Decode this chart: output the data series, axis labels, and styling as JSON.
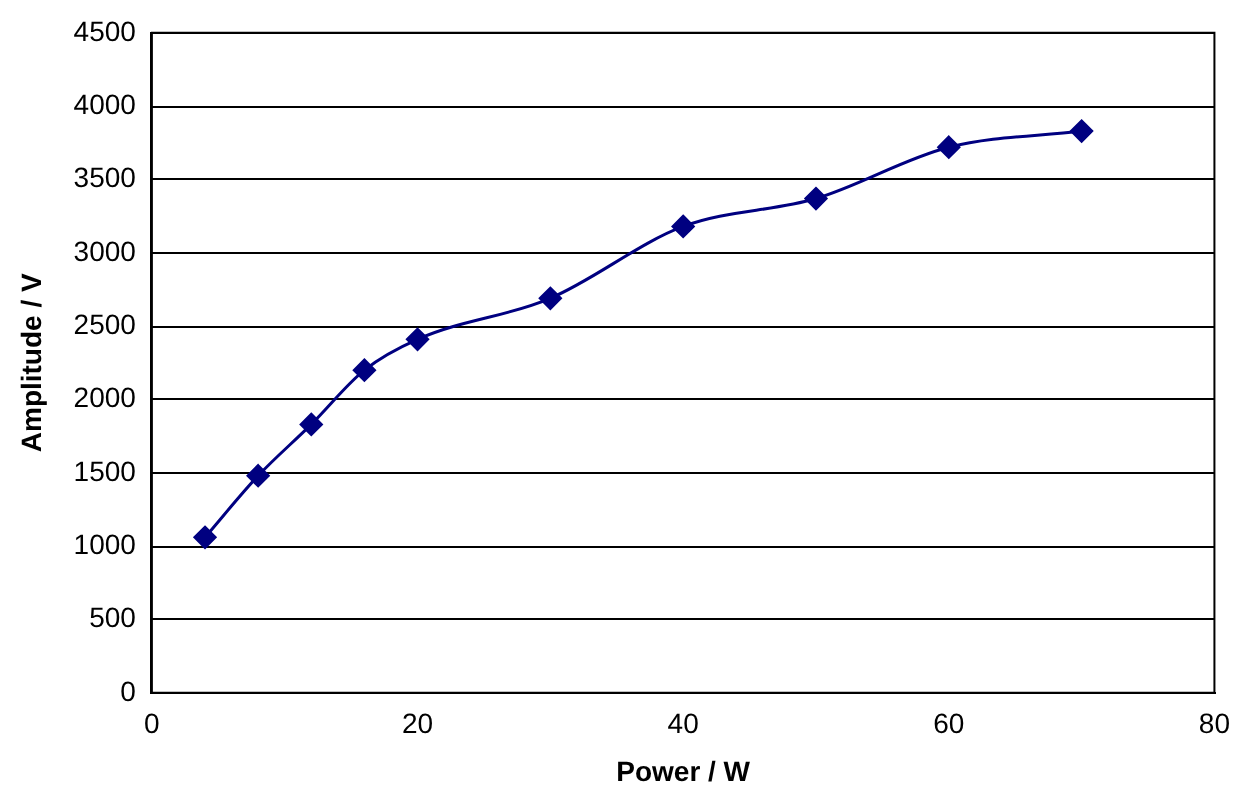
{
  "chart_data": {
    "type": "line",
    "xlabel": "Power / W",
    "ylabel": "Amplitude / V",
    "x": [
      4,
      8,
      12,
      16,
      20,
      30,
      40,
      50,
      60,
      70
    ],
    "series": [
      {
        "color": "#000080",
        "values": [
          1060,
          1480,
          1830,
          2200,
          2410,
          2690,
          3180,
          3370,
          3720,
          3830
        ]
      }
    ],
    "xlim": [
      0,
      80
    ],
    "xticks": [
      0,
      20,
      40,
      60,
      80
    ],
    "ylim": [
      0,
      4500
    ],
    "yticks": [
      0,
      500,
      1000,
      1500,
      2000,
      2500,
      3000,
      3500,
      4000,
      4500
    ],
    "grid": "y",
    "legend": false,
    "marker": "diamond",
    "line_style": "solid"
  }
}
